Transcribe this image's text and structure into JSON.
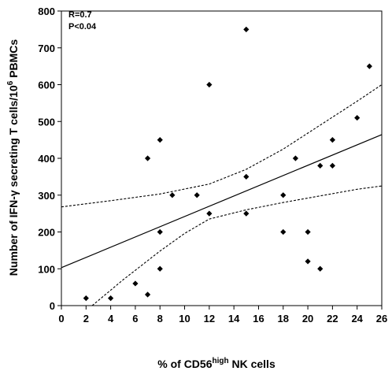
{
  "chart_data": {
    "type": "scatter",
    "title": "",
    "xlabel": {
      "base": "% of CD56",
      "sup": "high",
      "tail": " NK cells"
    },
    "ylabel": {
      "base": "Number of IFN-γ secreting T cells/10",
      "sup": "6",
      "tail": " PBMCs"
    },
    "xlim": [
      0,
      26
    ],
    "ylim": [
      0,
      800
    ],
    "xticks": [
      0,
      2,
      4,
      6,
      8,
      10,
      12,
      14,
      16,
      18,
      20,
      22,
      24,
      26
    ],
    "yticks": [
      0,
      100,
      200,
      300,
      400,
      500,
      600,
      700,
      800
    ],
    "grid": false,
    "annotations": [
      "R=0.7",
      "P<0.04"
    ],
    "points": [
      {
        "x": 2,
        "y": 20
      },
      {
        "x": 4,
        "y": 20
      },
      {
        "x": 6,
        "y": 60
      },
      {
        "x": 7,
        "y": 30
      },
      {
        "x": 7,
        "y": 400
      },
      {
        "x": 8,
        "y": 450
      },
      {
        "x": 8,
        "y": 200
      },
      {
        "x": 8,
        "y": 100
      },
      {
        "x": 9,
        "y": 300
      },
      {
        "x": 11,
        "y": 300
      },
      {
        "x": 12,
        "y": 600
      },
      {
        "x": 12,
        "y": 250
      },
      {
        "x": 15,
        "y": 750
      },
      {
        "x": 15,
        "y": 350
      },
      {
        "x": 15,
        "y": 250
      },
      {
        "x": 18,
        "y": 300
      },
      {
        "x": 18,
        "y": 200
      },
      {
        "x": 19,
        "y": 400
      },
      {
        "x": 20,
        "y": 200
      },
      {
        "x": 20,
        "y": 120
      },
      {
        "x": 21,
        "y": 380
      },
      {
        "x": 21,
        "y": 100
      },
      {
        "x": 22,
        "y": 450
      },
      {
        "x": 22,
        "y": 380
      },
      {
        "x": 24,
        "y": 510
      },
      {
        "x": 25,
        "y": 650
      }
    ],
    "regression": {
      "intercept": 103,
      "slope": 13.9,
      "x_range": [
        0,
        26
      ]
    },
    "confidence_band": {
      "upper": [
        [
          0,
          268
        ],
        [
          4,
          285
        ],
        [
          8,
          303
        ],
        [
          12,
          330
        ],
        [
          15,
          370
        ],
        [
          18,
          425
        ],
        [
          21,
          490
        ],
        [
          24,
          555
        ],
        [
          26,
          600
        ]
      ],
      "lower": [
        [
          2.5,
          0
        ],
        [
          5,
          70
        ],
        [
          8,
          148
        ],
        [
          10,
          196
        ],
        [
          12,
          235
        ],
        [
          15,
          260
        ],
        [
          18,
          280
        ],
        [
          21,
          298
        ],
        [
          24,
          316
        ],
        [
          26,
          325
        ]
      ]
    }
  }
}
